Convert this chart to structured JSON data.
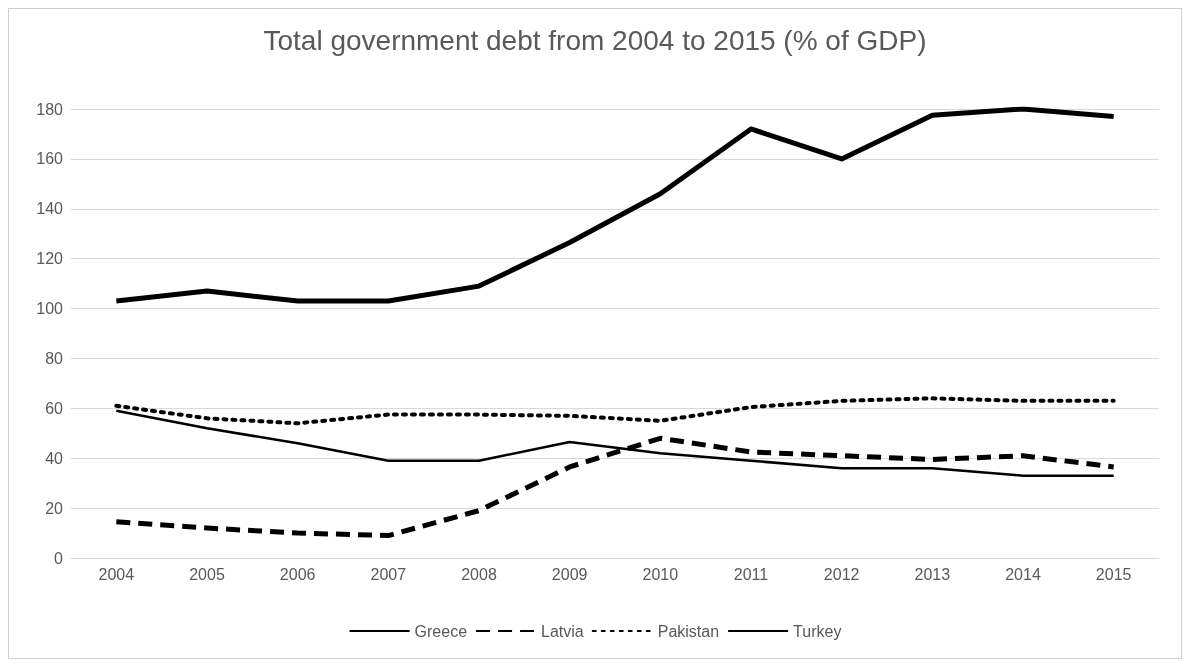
{
  "chart_data": {
    "type": "line",
    "title": "Total government debt from 2004 to 2015 (% of GDP)",
    "categories": [
      "2004",
      "2005",
      "2006",
      "2007",
      "2008",
      "2009",
      "2010",
      "2011",
      "2012",
      "2013",
      "2014",
      "2015"
    ],
    "series": [
      {
        "name": "Greece",
        "color": "#000000",
        "line_style": "solid",
        "values": [
          103,
          107,
          103,
          103,
          109,
          126.5,
          146,
          172,
          160,
          177.5,
          180,
          177
        ]
      },
      {
        "name": "Latvia",
        "color": "#000000",
        "line_style": "dashed",
        "values": [
          14.5,
          12,
          10,
          9,
          19,
          36.5,
          48,
          42.5,
          41,
          39.5,
          41,
          36.5
        ]
      },
      {
        "name": "Pakistan",
        "color": "#000000",
        "line_style": "dotted",
        "values": [
          61,
          56,
          54,
          57.5,
          57.5,
          57,
          55,
          60.5,
          63,
          64,
          63,
          63
        ]
      },
      {
        "name": "Turkey",
        "color": "#000000",
        "line_style": "solid",
        "values": [
          59,
          52,
          46,
          39,
          39,
          46.5,
          42,
          39,
          36,
          36,
          33,
          33
        ]
      }
    ],
    "ylim": [
      0,
      180
    ],
    "yticks": [
      0,
      20,
      40,
      60,
      80,
      100,
      120,
      140,
      160,
      180
    ],
    "grid": "y",
    "legend": "bottom",
    "marker": "none"
  }
}
